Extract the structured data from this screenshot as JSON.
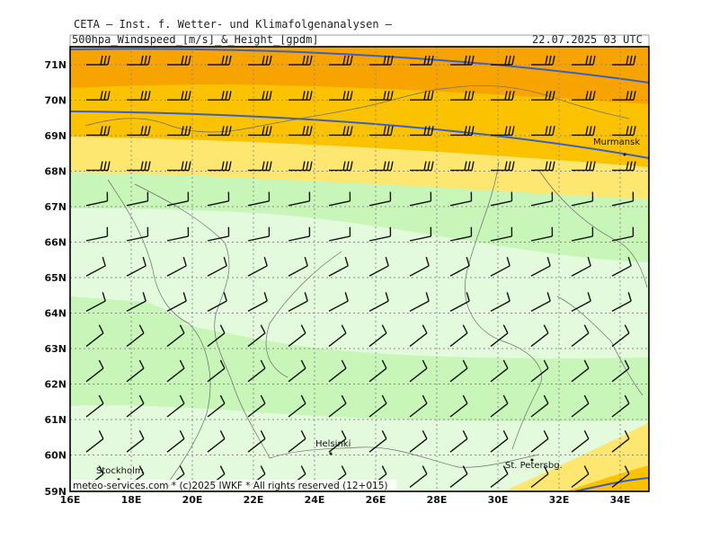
{
  "header": {
    "institution": "CETA — Inst. f. Wetter- und Klimafolgenanalysen —",
    "product": "500hpa_Windspeed_[m/s]_&_Height_[gpdm]",
    "datetime": "22.07.2025 03 UTC"
  },
  "map": {
    "lat_labels": [
      "71N",
      "70N",
      "69N",
      "68N",
      "67N",
      "66N",
      "65N",
      "64N",
      "63N",
      "62N",
      "61N",
      "60N",
      "59N"
    ],
    "lon_labels": [
      "16E",
      "18E",
      "20E",
      "22E",
      "24E",
      "26E",
      "28E",
      "30E",
      "32E",
      "34E"
    ],
    "cities": {
      "murmansk": "Murmansk",
      "helsinki": "Helsinki",
      "stockholm": "Stockholm",
      "st_petersburg": "St. Petersbg."
    },
    "copyright": "meteo-services.com * (c)2025 IWKF * All rights reserved (12+015)",
    "colors": {
      "strong": "#f7a400",
      "orange": "#fbc200",
      "yellow": "#fde771",
      "green": "#c8f5b8",
      "lightgreen": "#e3fbdc",
      "contour": "#3a5fc8",
      "barb": "#111111"
    }
  }
}
